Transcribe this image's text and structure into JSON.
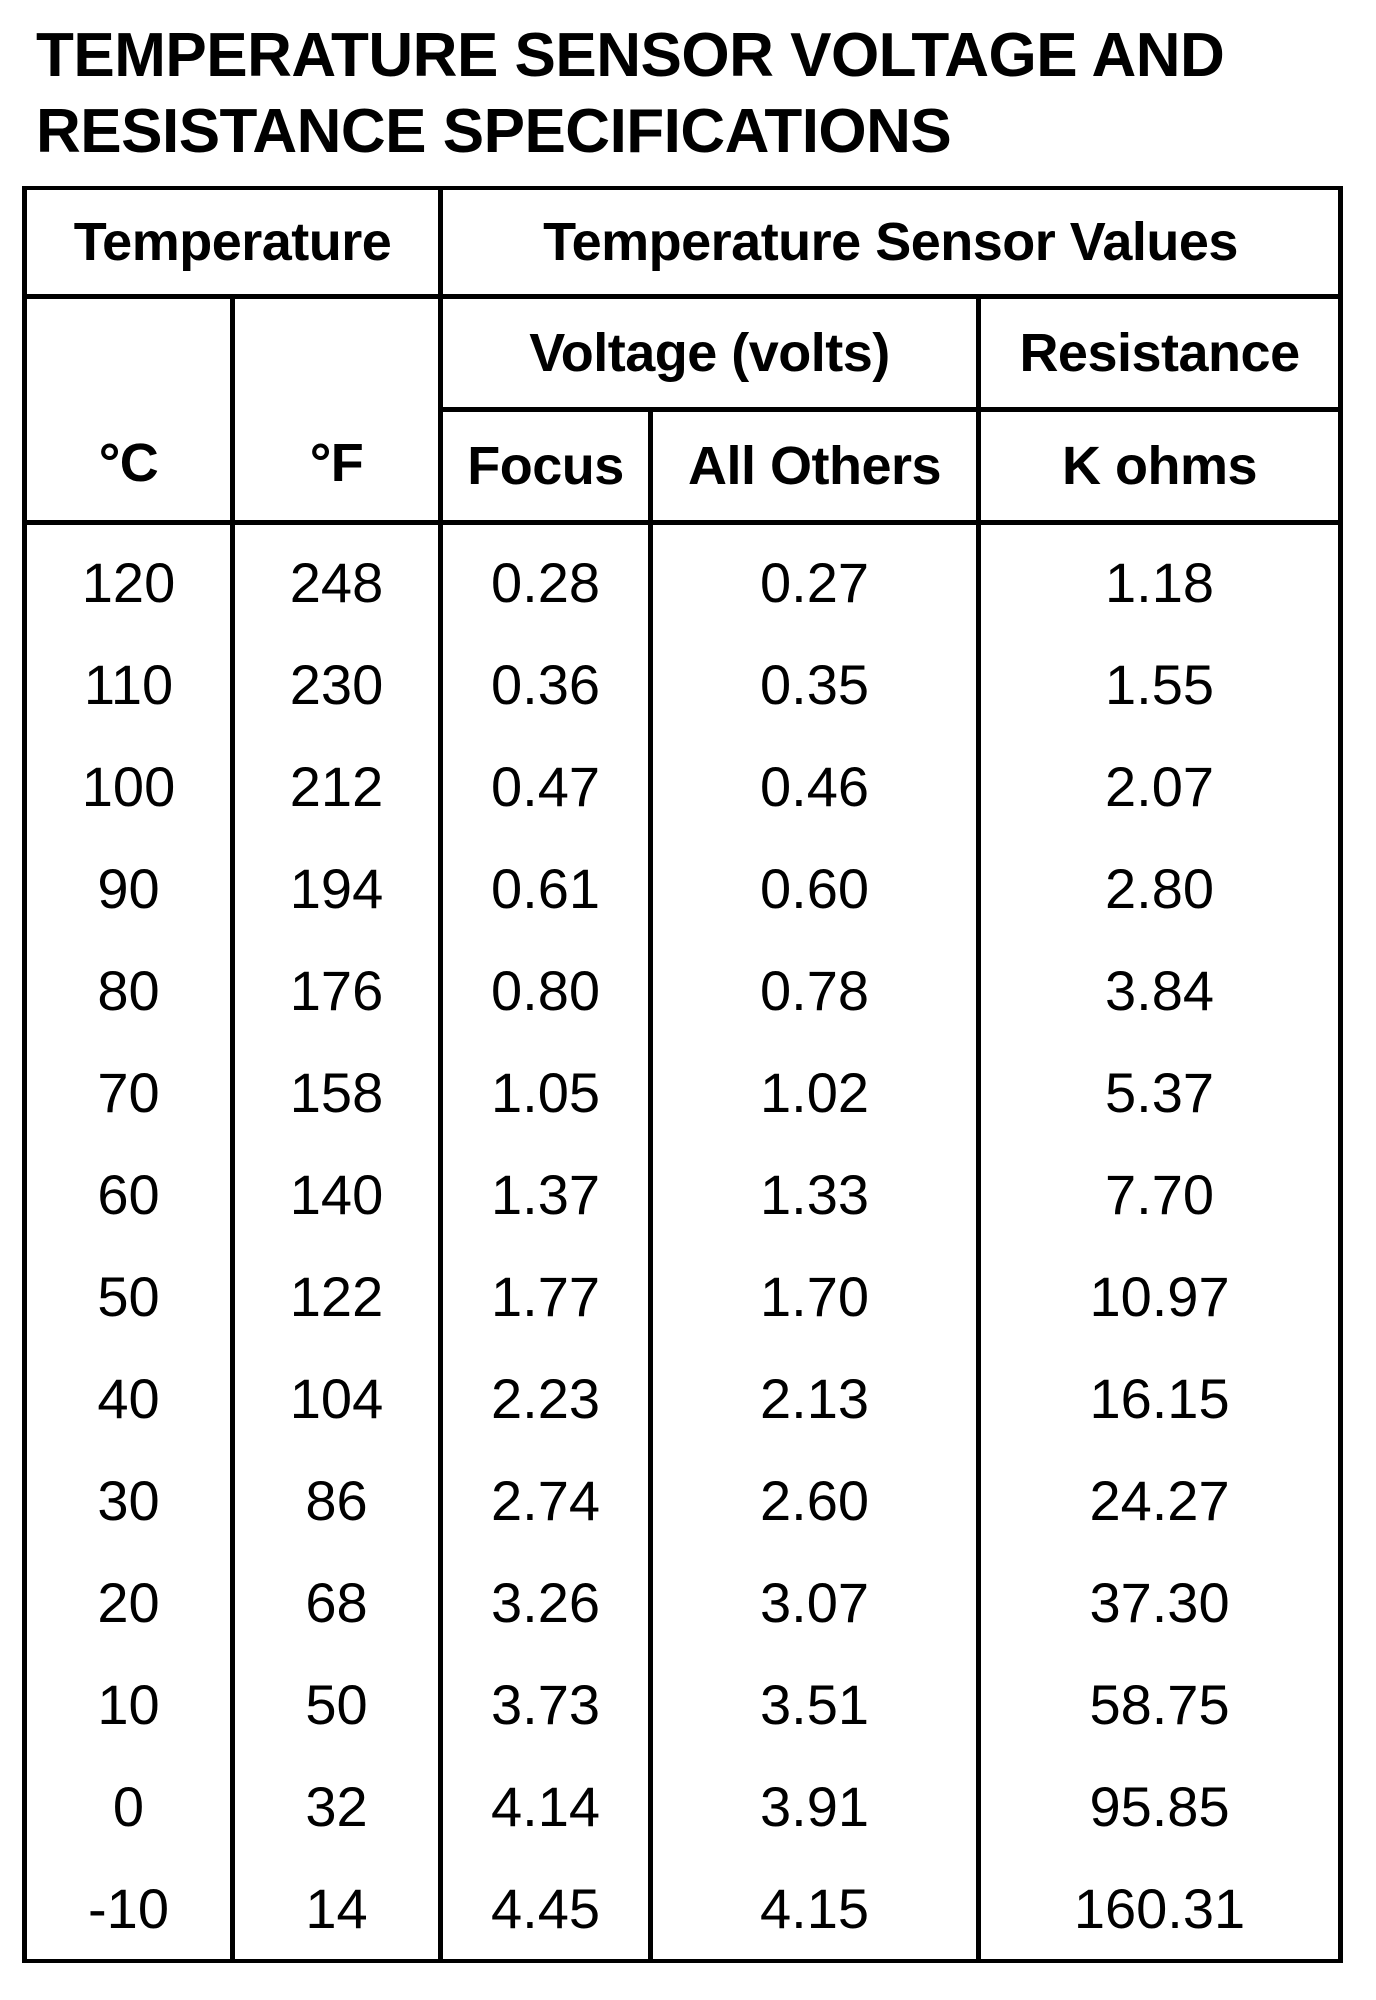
{
  "title": {
    "line1": "TEMPERATURE SENSOR VOLTAGE AND",
    "line2": "RESISTANCE SPECIFICATIONS"
  },
  "table": {
    "group_headers": {
      "temperature": "Temperature",
      "sensor_values": "Temperature Sensor Values"
    },
    "sub_headers": {
      "voltage": "Voltage (volts)",
      "resistance": "Resistance"
    },
    "columns": {
      "celsius": "°C",
      "fahrenheit": "°F",
      "focus": "Focus",
      "all_others": "All Others",
      "k_ohms": "K ohms"
    },
    "rows": [
      [
        "120",
        "248",
        "0.28",
        "0.27",
        "1.18"
      ],
      [
        "110",
        "230",
        "0.36",
        "0.35",
        "1.55"
      ],
      [
        "100",
        "212",
        "0.47",
        "0.46",
        "2.07"
      ],
      [
        "90",
        "194",
        "0.61",
        "0.60",
        "2.80"
      ],
      [
        "80",
        "176",
        "0.80",
        "0.78",
        "3.84"
      ],
      [
        "70",
        "158",
        "1.05",
        "1.02",
        "5.37"
      ],
      [
        "60",
        "140",
        "1.37",
        "1.33",
        "7.70"
      ],
      [
        "50",
        "122",
        "1.77",
        "1.70",
        "10.97"
      ],
      [
        "40",
        "104",
        "2.23",
        "2.13",
        "16.15"
      ],
      [
        "30",
        "86",
        "2.74",
        "2.60",
        "24.27"
      ],
      [
        "20",
        "68",
        "3.26",
        "3.07",
        "37.30"
      ],
      [
        "10",
        "50",
        "3.73",
        "3.51",
        "58.75"
      ],
      [
        "0",
        "32",
        "4.14",
        "3.91",
        "95.85"
      ],
      [
        "-10",
        "14",
        "4.45",
        "4.15",
        "160.31"
      ]
    ]
  }
}
